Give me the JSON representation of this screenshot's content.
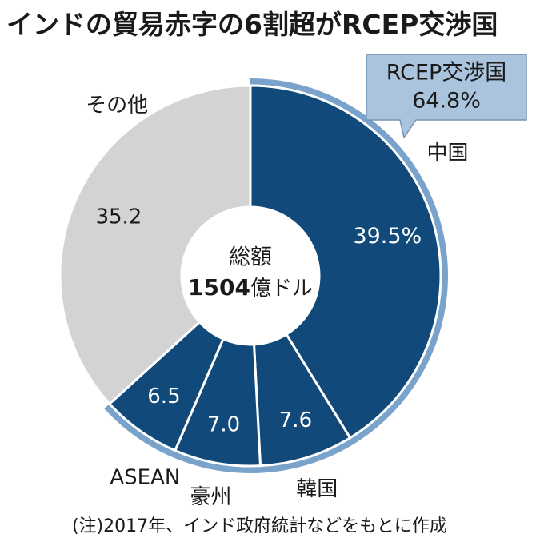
{
  "title": "インドの貿易赤字の6割超がRCEP交渉国",
  "note": "(注)2017年、インド政府統計などをもとに作成",
  "center_label": {
    "line1": "総額",
    "line2_value": "1504",
    "line2_unit": "億ドル"
  },
  "callout": {
    "label": "RCEP交渉国",
    "value": "64.8%"
  },
  "colors": {
    "rcep": "#114a7a",
    "other": "#d3d3d3",
    "ring": "#7aa3cc",
    "callout_fill": "#aac4de"
  },
  "chart_data": {
    "type": "pie",
    "title": "インドの貿易赤字の6割超がRCEP交渉国",
    "total": "1504億ドル",
    "slices": [
      {
        "name": "中国",
        "value": 39.5,
        "display": "39.5%",
        "group": "rcep"
      },
      {
        "name": "韓国",
        "value": 7.6,
        "display": "7.6",
        "group": "rcep"
      },
      {
        "name": "豪州",
        "value": 7.0,
        "display": "7.0",
        "group": "rcep"
      },
      {
        "name": "ASEAN",
        "value": 6.5,
        "display": "6.5",
        "group": "rcep"
      },
      {
        "name": "その他",
        "value": 35.2,
        "display": "35.2",
        "group": "other"
      }
    ],
    "groups": [
      {
        "name": "RCEP交渉国",
        "value": 64.8
      }
    ]
  }
}
